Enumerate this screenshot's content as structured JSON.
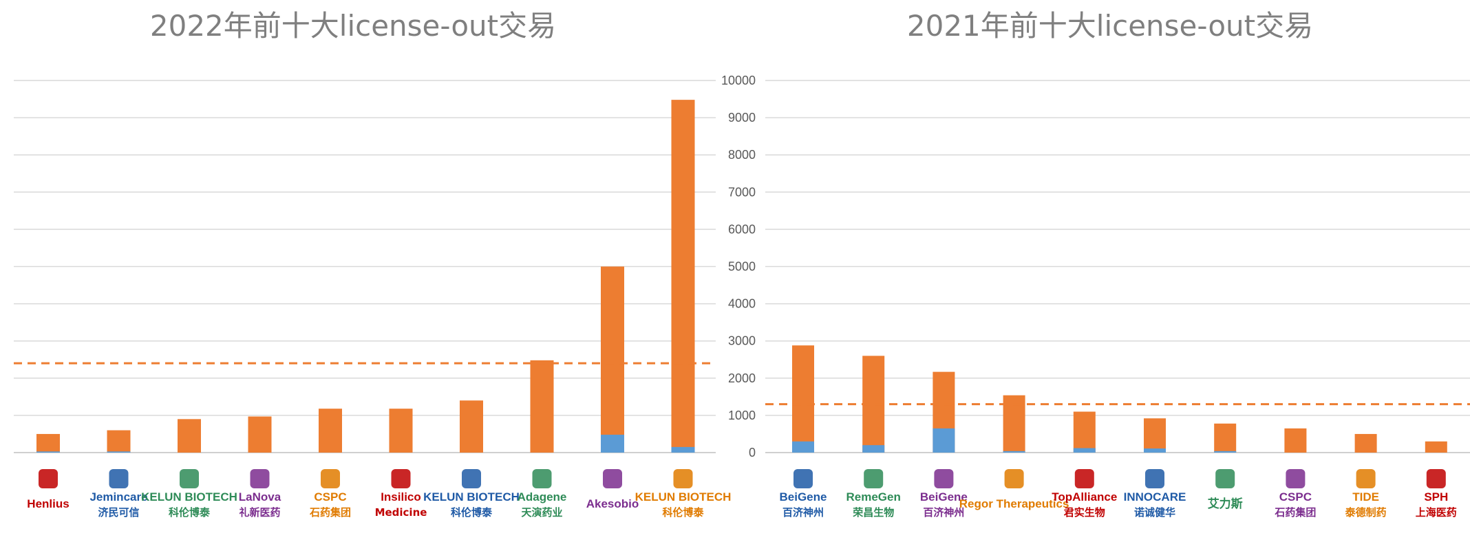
{
  "colors": {
    "total": "#ED7D31",
    "upfront": "#5B9BD5",
    "average_line": "#ED7D31",
    "grid": "#d9d9d9",
    "title": "#7f7f7f"
  },
  "chart_data": [
    {
      "type": "bar",
      "title": "2022年前十大license-out交易",
      "stacked": true,
      "grid": true,
      "ylim": [
        0,
        10000
      ],
      "categories": [
        {
          "name": "Henlius",
          "sub": ""
        },
        {
          "name": "Jemincare",
          "sub": "济民可信"
        },
        {
          "name": "KELUN BIOTECH",
          "sub": "科伦博泰"
        },
        {
          "name": "LaNova",
          "sub": "礼新医药"
        },
        {
          "name": "CSPC",
          "sub": "石药集团"
        },
        {
          "name": "Insilico",
          "sub": "Medicine"
        },
        {
          "name": "KELUN BIOTECH",
          "sub": "科伦博泰"
        },
        {
          "name": "Adagene",
          "sub": "天演药业"
        },
        {
          "name": "Akesobio",
          "sub": ""
        },
        {
          "name": "KELUN BIOTECH",
          "sub": "科伦博泰"
        }
      ],
      "series": [
        {
          "key": "total",
          "values": [
            500,
            600,
            900,
            970,
            1180,
            1180,
            1400,
            2480,
            5000,
            9480
          ]
        },
        {
          "key": "upfront",
          "values": [
            30,
            30,
            0,
            0,
            0,
            0,
            0,
            0,
            480,
            150
          ]
        }
      ],
      "average": 2400
    },
    {
      "type": "bar",
      "title": "2021年前十大license-out交易",
      "stacked": true,
      "grid": true,
      "ylim": [
        0,
        10000
      ],
      "yticks": [
        0,
        1000,
        2000,
        3000,
        4000,
        5000,
        6000,
        7000,
        8000,
        9000,
        10000
      ],
      "categories": [
        {
          "name": "BeiGene",
          "sub": "百济神州"
        },
        {
          "name": "RemeGen",
          "sub": "荣昌生物"
        },
        {
          "name": "BeiGene",
          "sub": "百济神州"
        },
        {
          "name": "Regor Therapeutics",
          "sub": ""
        },
        {
          "name": "TopAlliance",
          "sub": "君实生物"
        },
        {
          "name": "INNOCARE",
          "sub": "诺诚健华"
        },
        {
          "name": "艾力斯",
          "sub": ""
        },
        {
          "name": "CSPC",
          "sub": "石药集团"
        },
        {
          "name": "TIDE",
          "sub": "泰德制药"
        },
        {
          "name": "SPH",
          "sub": "上海医药"
        }
      ],
      "series": [
        {
          "key": "total",
          "values": [
            2880,
            2600,
            2170,
            1540,
            1100,
            920,
            780,
            650,
            500,
            300
          ]
        },
        {
          "key": "upfront",
          "values": [
            300,
            200,
            650,
            40,
            120,
            110,
            40,
            0,
            0,
            0
          ]
        }
      ],
      "average": 1300
    }
  ]
}
